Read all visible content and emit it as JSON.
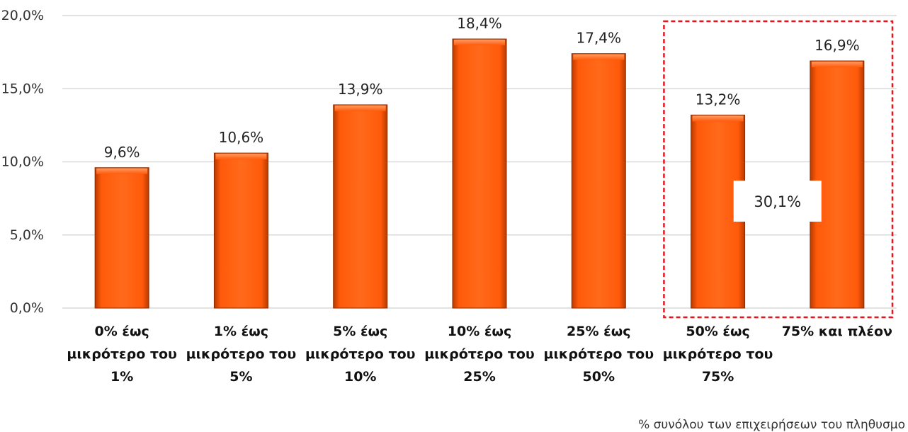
{
  "chart_data": {
    "type": "bar",
    "categories": [
      [
        "0% έως",
        "μικρότερο του",
        "1%"
      ],
      [
        "1% έως",
        "μικρότερο του",
        "5%"
      ],
      [
        "5% έως",
        "μικρότερο του",
        "10%"
      ],
      [
        "10% έως",
        "μικρότερο του",
        "25%"
      ],
      [
        "25% έως",
        "μικρότερο του",
        "50%"
      ],
      [
        "50% έως",
        "μικρότερο του",
        "75%"
      ],
      [
        "75% και πλέον"
      ]
    ],
    "values": [
      9.6,
      10.6,
      13.9,
      18.4,
      17.4,
      13.2,
      16.9
    ],
    "value_labels": [
      "9,6%",
      "10,6%",
      "13,9%",
      "18,4%",
      "17,4%",
      "13,2%",
      "16,9%"
    ],
    "ylim": [
      0,
      20
    ],
    "yticks": [
      0,
      5,
      10,
      15,
      20
    ],
    "ytick_labels": [
      "0,0%",
      "5,0%",
      "10,0%",
      "15,0%",
      "20,0%"
    ],
    "grid": true,
    "bar_color": "#ff5a0a",
    "highlight": {
      "categories_index": [
        5,
        6
      ],
      "label": "30,1%",
      "border_color": "#e8141e"
    },
    "footnote": "% συνόλου των επιχειρήσεων του πληθυσμο"
  }
}
